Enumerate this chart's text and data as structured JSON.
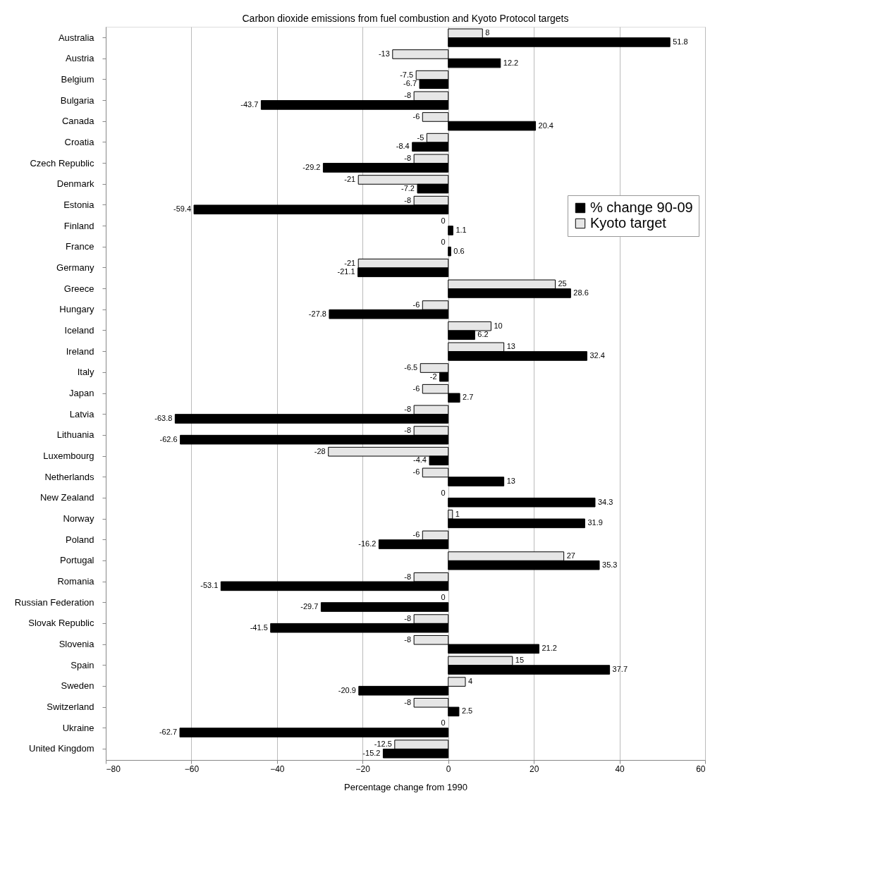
{
  "chart_data": {
    "type": "bar",
    "orientation": "horizontal",
    "title": "Carbon dioxide emissions from fuel combustion and Kyoto Protocol targets",
    "xlabel": "Percentage change from 1990",
    "categories": [
      "Australia",
      "Austria",
      "Belgium",
      "Bulgaria",
      "Canada",
      "Croatia",
      "Czech Republic",
      "Denmark",
      "Estonia",
      "Finland",
      "France",
      "Germany",
      "Greece",
      "Hungary",
      "Iceland",
      "Ireland",
      "Italy",
      "Japan",
      "Latvia",
      "Lithuania",
      "Luxembourg",
      "Netherlands",
      "New Zealand",
      "Norway",
      "Poland",
      "Portugal",
      "Romania",
      "Russian Federation",
      "Slovak Republic",
      "Slovenia",
      "Spain",
      "Sweden",
      "Switzerland",
      "Ukraine",
      "United Kingdom"
    ],
    "series": [
      {
        "name": "Kyoto target",
        "color": "#e6e6e6",
        "values": [
          8,
          -13,
          -7.5,
          -8,
          -6,
          -5,
          -8,
          -21,
          -8,
          0,
          0,
          -21,
          25,
          -6,
          10,
          13,
          -6.5,
          -6,
          -8,
          -8,
          -28,
          -6,
          0,
          1,
          -6,
          27,
          -8,
          0,
          -8,
          -8,
          15,
          4,
          -8,
          0,
          -12.5
        ]
      },
      {
        "name": "% change 90-09",
        "color": "#000000",
        "values": [
          51.8,
          12.2,
          -6.7,
          -43.7,
          20.4,
          -8.4,
          -29.2,
          -7.2,
          -59.4,
          1.1,
          0.6,
          -21.1,
          28.6,
          -27.8,
          6.2,
          32.4,
          -2,
          2.7,
          -63.8,
          -62.6,
          -4.4,
          13,
          34.3,
          31.9,
          -16.2,
          35.3,
          -53.1,
          -29.7,
          -41.5,
          21.2,
          37.7,
          -20.9,
          2.5,
          -62.7,
          -15.2
        ]
      }
    ],
    "xlim": [
      -80,
      60
    ],
    "xticks": [
      -80,
      -60,
      -40,
      -20,
      0,
      20,
      40,
      60
    ],
    "grid": "x",
    "legend": "right",
    "data_labels": true
  }
}
